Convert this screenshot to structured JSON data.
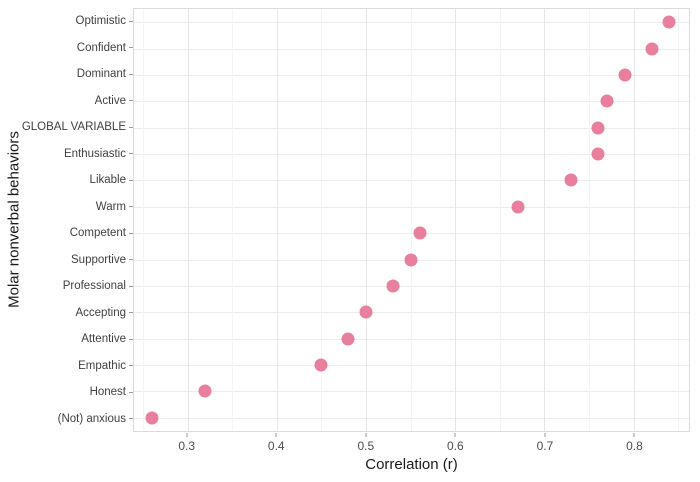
{
  "chart_data": {
    "type": "scatter",
    "subtype": "horizontal-dot-plot",
    "title": "",
    "xlabel": "Correlation (r)",
    "ylabel": "Molar nonverbal behaviors",
    "xlim": [
      0.24,
      0.862
    ],
    "xticks": [
      0.3,
      0.4,
      0.5,
      0.6,
      0.7,
      0.8
    ],
    "xtick_labels": [
      "0.3",
      "0.4",
      "0.5",
      "0.6",
      "0.7",
      "0.8"
    ],
    "categories": [
      "Optimistic",
      "Confident",
      "Dominant",
      "Active",
      "GLOBAL VARIABLE",
      "Enthusiastic",
      "Likable",
      "Warm",
      "Competent",
      "Supportive",
      "Professional",
      "Accepting",
      "Attentive",
      "Empathic",
      "Honest",
      "(Not) anxious"
    ],
    "values": [
      0.84,
      0.82,
      0.79,
      0.77,
      0.76,
      0.76,
      0.73,
      0.67,
      0.56,
      0.55,
      0.53,
      0.5,
      0.48,
      0.45,
      0.32,
      0.26
    ],
    "dot_color": "#e8809d",
    "grid": true,
    "legend": false,
    "background": "#ffffff"
  }
}
